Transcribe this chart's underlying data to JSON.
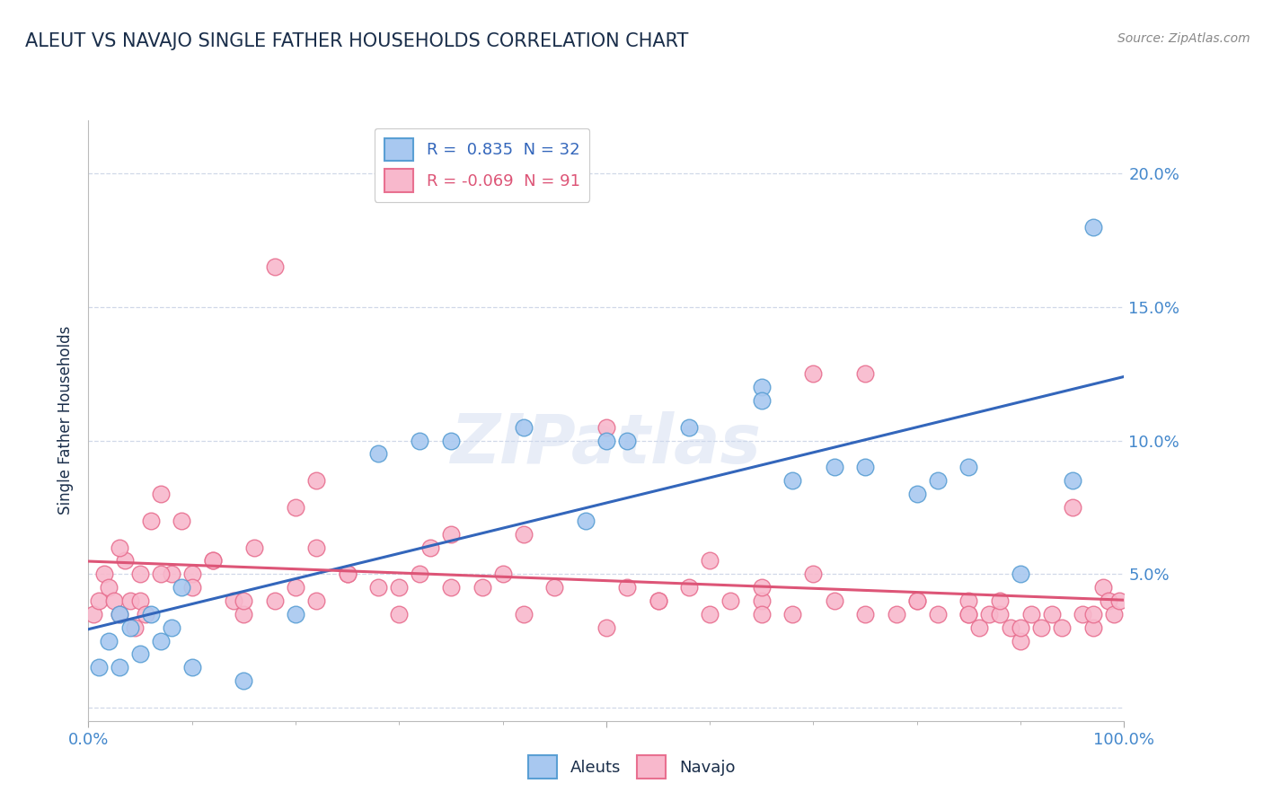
{
  "title": "ALEUT VS NAVAJO SINGLE FATHER HOUSEHOLDS CORRELATION CHART",
  "source": "Source: ZipAtlas.com",
  "ylabel": "Single Father Households",
  "watermark": "ZIPatlas",
  "legend_entries": [
    {
      "label": "R =  0.835  N = 32",
      "color": "#7fb3e8"
    },
    {
      "label": "R = -0.069  N = 91",
      "color": "#f4a0b5"
    }
  ],
  "legend_bottom": [
    "Aleuts",
    "Navajo"
  ],
  "aleut_color": "#a8c8f0",
  "navajo_color": "#f8b8cc",
  "aleut_edge_color": "#5a9fd4",
  "navajo_edge_color": "#e87090",
  "aleut_line_color": "#3366bb",
  "navajo_line_color": "#dd5577",
  "background_color": "#ffffff",
  "grid_color": "#d0d8e8",
  "title_color": "#1a2e4a",
  "axis_color": "#4488cc",
  "xlim": [
    0,
    100
  ],
  "ylim": [
    -0.5,
    22
  ],
  "aleut_x": [
    1,
    2,
    3,
    3,
    4,
    5,
    6,
    7,
    8,
    9,
    10,
    15,
    20,
    28,
    32,
    35,
    42,
    48,
    50,
    52,
    58,
    65,
    65,
    68,
    72,
    75,
    80,
    82,
    85,
    90,
    95,
    97
  ],
  "aleut_y": [
    1.5,
    2.5,
    1.5,
    3.5,
    3.0,
    2.0,
    3.5,
    2.5,
    3.0,
    4.5,
    1.5,
    1.0,
    3.5,
    9.5,
    10.0,
    10.0,
    10.5,
    7.0,
    10.0,
    10.0,
    10.5,
    12.0,
    11.5,
    8.5,
    9.0,
    9.0,
    8.0,
    8.5,
    9.0,
    5.0,
    8.5,
    18.0
  ],
  "navajo_x": [
    0.5,
    1.0,
    1.5,
    2.0,
    2.5,
    3.0,
    3.5,
    4.0,
    4.5,
    5.0,
    5.5,
    6.0,
    7.0,
    8.0,
    9.0,
    10.0,
    12.0,
    14.0,
    15.0,
    16.0,
    18.0,
    20.0,
    22.0,
    22.0,
    25.0,
    28.0,
    30.0,
    32.0,
    33.0,
    35.0,
    38.0,
    40.0,
    42.0,
    45.0,
    50.0,
    52.0,
    55.0,
    58.0,
    60.0,
    62.0,
    65.0,
    65.0,
    68.0,
    70.0,
    72.0,
    75.0,
    78.0,
    80.0,
    82.0,
    85.0,
    85.0,
    86.0,
    87.0,
    88.0,
    88.0,
    89.0,
    90.0,
    91.0,
    92.0,
    93.0,
    94.0,
    95.0,
    96.0,
    97.0,
    97.0,
    98.0,
    98.5,
    99.0,
    99.5,
    3.0,
    5.0,
    7.0,
    10.0,
    12.0,
    15.0,
    18.0,
    20.0,
    22.0,
    25.0,
    30.0,
    35.0,
    42.0,
    50.0,
    55.0,
    60.0,
    65.0,
    70.0,
    75.0,
    80.0,
    85.0,
    90.0
  ],
  "navajo_y": [
    3.5,
    4.0,
    5.0,
    4.5,
    4.0,
    3.5,
    5.5,
    4.0,
    3.0,
    4.0,
    3.5,
    7.0,
    8.0,
    5.0,
    7.0,
    5.0,
    5.5,
    4.0,
    3.5,
    6.0,
    16.5,
    7.5,
    8.5,
    6.0,
    5.0,
    4.5,
    3.5,
    5.0,
    6.0,
    6.5,
    4.5,
    5.0,
    6.5,
    4.5,
    3.0,
    4.5,
    4.0,
    4.5,
    3.5,
    4.0,
    4.0,
    4.5,
    3.5,
    5.0,
    4.0,
    3.5,
    3.5,
    4.0,
    3.5,
    3.5,
    4.0,
    3.0,
    3.5,
    3.5,
    4.0,
    3.0,
    2.5,
    3.5,
    3.0,
    3.5,
    3.0,
    7.5,
    3.5,
    3.0,
    3.5,
    4.5,
    4.0,
    3.5,
    4.0,
    6.0,
    5.0,
    5.0,
    4.5,
    5.5,
    4.0,
    4.0,
    4.5,
    4.0,
    5.0,
    4.5,
    4.5,
    3.5,
    10.5,
    4.0,
    5.5,
    3.5,
    12.5,
    12.5,
    4.0,
    3.5,
    3.0
  ]
}
